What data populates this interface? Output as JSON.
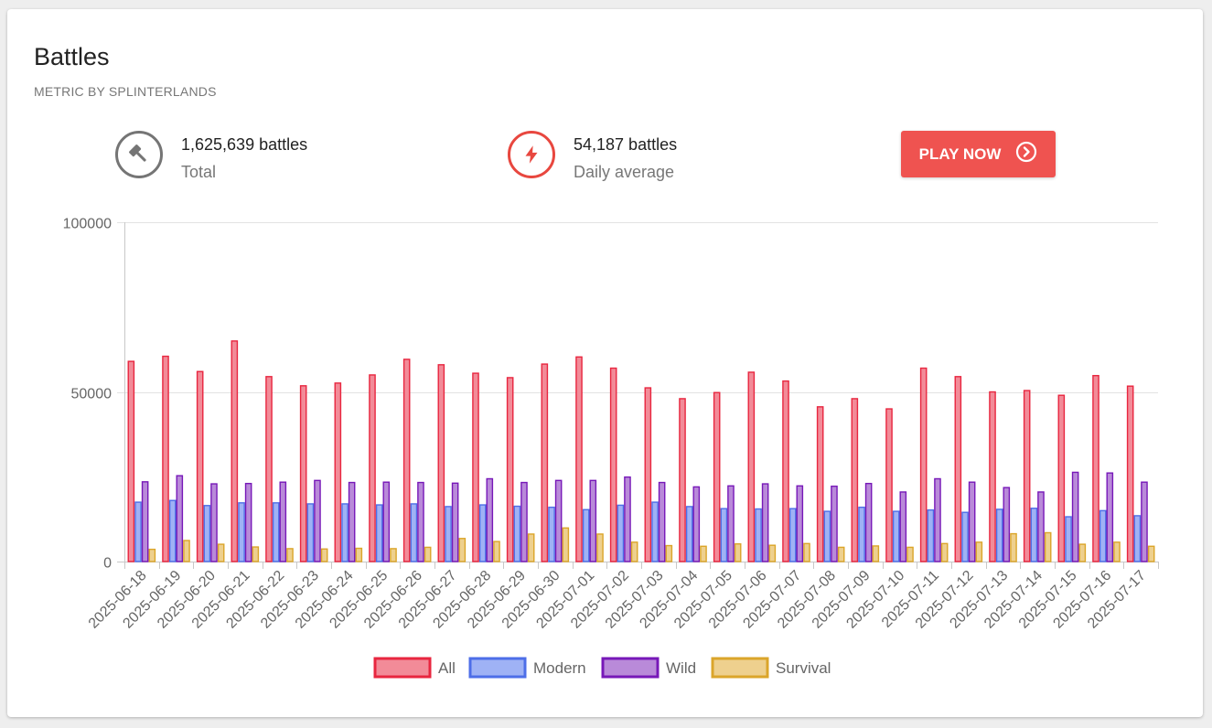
{
  "header": {
    "title": "Battles",
    "subtitle": "METRIC BY SPLINTERLANDS"
  },
  "stats": {
    "total": {
      "value": "1,625,639 battles",
      "label": "Total",
      "icon": "gavel-icon"
    },
    "daily": {
      "value": "54,187 battles",
      "label": "Daily average",
      "icon": "lightning-icon"
    }
  },
  "play_button": {
    "label": "PLAY NOW",
    "icon": "chevron-right-circle-icon"
  },
  "colors": {
    "all": "#e8263f",
    "all_fill": "#f28b98",
    "modern": "#4d6ee8",
    "modern_fill": "#9fb2f5",
    "wild": "#7718b8",
    "wild_fill": "#b98ad9",
    "survival": "#dba52a",
    "survival_fill": "#eed08e",
    "accent": "#ef5350"
  },
  "chart_data": {
    "type": "bar",
    "title": "",
    "xlabel": "",
    "ylabel": "",
    "ylim": [
      0,
      100000
    ],
    "yticks": [
      0,
      50000,
      100000
    ],
    "legend_position": "bottom",
    "grid": true,
    "categories": [
      "2025-06-18",
      "2025-06-19",
      "2025-06-20",
      "2025-06-21",
      "2025-06-22",
      "2025-06-23",
      "2025-06-24",
      "2025-06-25",
      "2025-06-26",
      "2025-06-27",
      "2025-06-28",
      "2025-06-29",
      "2025-06-30",
      "2025-07-01",
      "2025-07-02",
      "2025-07-03",
      "2025-07-04",
      "2025-07-05",
      "2025-07-06",
      "2025-07-07",
      "2025-07-08",
      "2025-07-09",
      "2025-07-10",
      "2025-07-11",
      "2025-07-12",
      "2025-07-13",
      "2025-07-14",
      "2025-07-15",
      "2025-07-16",
      "2025-07-17"
    ],
    "series": [
      {
        "name": "All",
        "key": "all",
        "values": [
          59000,
          60500,
          56000,
          65000,
          54500,
          51800,
          52600,
          55000,
          59600,
          58000,
          55500,
          54200,
          58200,
          60300,
          57000,
          51200,
          48000,
          49800,
          55800,
          53200,
          45600,
          48000,
          45000,
          57000,
          54500,
          50000,
          50400,
          49000,
          54800,
          51700
        ]
      },
      {
        "name": "Modern",
        "key": "modern",
        "values": [
          17500,
          18000,
          16500,
          17300,
          17300,
          17000,
          17000,
          16700,
          17000,
          16200,
          16700,
          16300,
          16000,
          15300,
          16600,
          17500,
          16200,
          15600,
          15500,
          15600,
          14800,
          16000,
          14800,
          15200,
          14500,
          15400,
          15700,
          13200,
          15000,
          13500
        ]
      },
      {
        "name": "Wild",
        "key": "wild",
        "values": [
          23500,
          25300,
          22900,
          23000,
          23400,
          23900,
          23300,
          23400,
          23300,
          23100,
          24400,
          23300,
          23900,
          23900,
          24900,
          23300,
          22000,
          22300,
          22900,
          22300,
          22200,
          23000,
          20500,
          24400,
          23400,
          21800,
          20500,
          26300,
          26100,
          23400
        ]
      },
      {
        "name": "Survival",
        "key": "survival",
        "values": [
          3600,
          6200,
          5100,
          4300,
          3800,
          3700,
          3900,
          3800,
          4200,
          6800,
          5900,
          8100,
          9900,
          8100,
          5700,
          4700,
          4500,
          5200,
          4800,
          5300,
          4200,
          4600,
          4200,
          5300,
          5700,
          8200,
          8500,
          5100,
          5700,
          4500
        ]
      }
    ]
  }
}
